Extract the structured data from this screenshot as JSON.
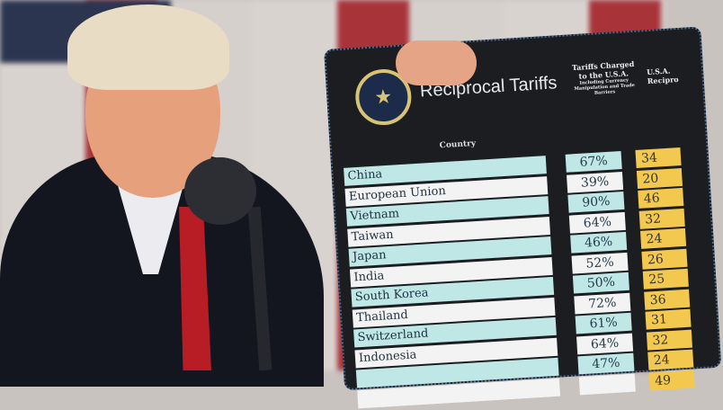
{
  "board": {
    "title": "Reciprocal Tariffs",
    "column_country": "Country",
    "column_charged": "Tariffs Charged to the U.S.A.",
    "column_charged_note": "Including Currency Manipulation and Trade Barriers",
    "column_reciprocal_line1": "U.S.A.",
    "column_reciprocal_line2": "Recipro",
    "rows": [
      {
        "country": "China",
        "charged": "67%",
        "reciprocal": "34"
      },
      {
        "country": "European Union",
        "charged": "39%",
        "reciprocal": "20"
      },
      {
        "country": "Vietnam",
        "charged": "90%",
        "reciprocal": "46"
      },
      {
        "country": "Taiwan",
        "charged": "64%",
        "reciprocal": "32"
      },
      {
        "country": "Japan",
        "charged": "46%",
        "reciprocal": "24"
      },
      {
        "country": "India",
        "charged": "52%",
        "reciprocal": "26"
      },
      {
        "country": "South Korea",
        "charged": "50%",
        "reciprocal": "25"
      },
      {
        "country": "Thailand",
        "charged": "72%",
        "reciprocal": "36"
      },
      {
        "country": "Switzerland",
        "charged": "61%",
        "reciprocal": "31"
      },
      {
        "country": "Indonesia",
        "charged": "64%",
        "reciprocal": "32"
      },
      {
        "country": "",
        "charged": "47%",
        "reciprocal": "24"
      },
      {
        "country": "",
        "charged": "",
        "reciprocal": "49"
      }
    ]
  },
  "colors": {
    "teal_row": "#bfe7e6",
    "white_row": "#f3f3f3",
    "yellow": "#f2c94e",
    "board": "#1c1d21"
  }
}
